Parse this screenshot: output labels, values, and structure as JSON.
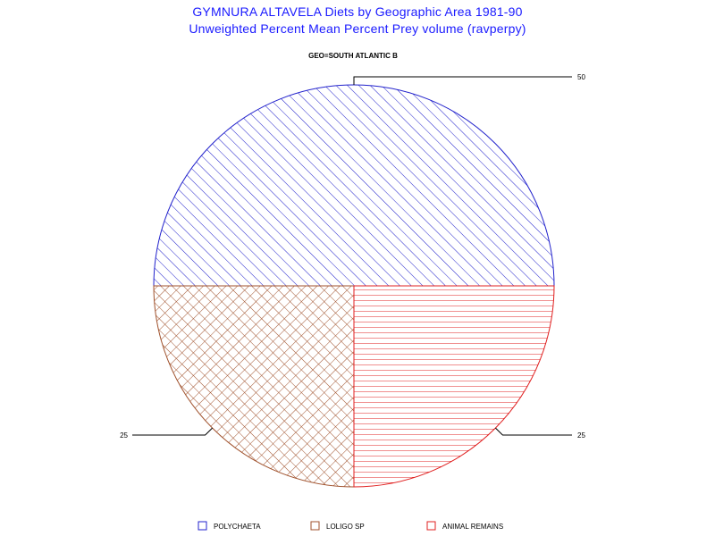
{
  "title_line1": "GYMNURA ALTAVELA Diets by Geographic Area 1981-90",
  "title_line2": "Unweighted Percent Mean Percent Prey  volume (ravperpy)",
  "subtitle": "GEO=SOUTH ATLANTIC B",
  "chart_data": {
    "type": "pie",
    "title": "GYMNURA ALTAVELA Diets by Geographic Area 1981-90",
    "subtitle": "GEO=SOUTH ATLANTIC B",
    "categories": [
      "POLYCHAETA",
      "LOLIGO SP",
      "ANIMAL REMAINS"
    ],
    "values": [
      50,
      25,
      25
    ],
    "value_labels": [
      "50",
      "25",
      "25"
    ],
    "colors": [
      "#2222cc",
      "#a0522d",
      "#e02020"
    ],
    "patterns": [
      "diagonal",
      "crosshatch",
      "horizontal"
    ],
    "legend_position": "bottom"
  }
}
